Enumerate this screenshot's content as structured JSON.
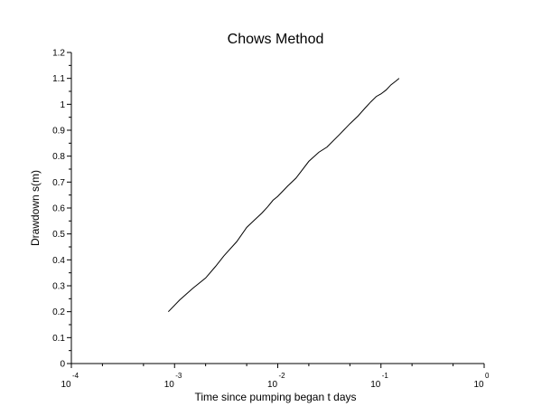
{
  "chart_data": {
    "type": "line",
    "title": "Chows Method",
    "xlabel": "Time since pumping began t days",
    "ylabel": "Drawdown s(m)",
    "xscale": "log",
    "xlim": [
      0.0001,
      1
    ],
    "ylim": [
      0,
      1.2
    ],
    "grid": false,
    "x_ticks": [
      {
        "base": "10",
        "exp": "-4"
      },
      {
        "base": "10",
        "exp": "-3"
      },
      {
        "base": "10",
        "exp": "-2"
      },
      {
        "base": "10",
        "exp": "-1"
      },
      {
        "base": "10",
        "exp": "0"
      }
    ],
    "y_ticks": [
      "0",
      "0.1",
      "0.2",
      "0.3",
      "0.4",
      "0.5",
      "0.6",
      "0.7",
      "0.8",
      "0.9",
      "1",
      "1.1",
      "1.2"
    ],
    "series": [
      {
        "color": "#000000",
        "x": [
          0.00087,
          0.00112,
          0.0015,
          0.002,
          0.0025,
          0.003,
          0.004,
          0.005,
          0.006,
          0.007,
          0.008,
          0.009,
          0.01,
          0.0125,
          0.015,
          0.02,
          0.025,
          0.03,
          0.04,
          0.05,
          0.06,
          0.07,
          0.08,
          0.09,
          0.1,
          0.112,
          0.125,
          0.14,
          0.15
        ],
        "y": [
          0.2,
          0.245,
          0.29,
          0.33,
          0.375,
          0.415,
          0.47,
          0.525,
          0.555,
          0.58,
          0.605,
          0.63,
          0.645,
          0.685,
          0.715,
          0.78,
          0.815,
          0.835,
          0.885,
          0.925,
          0.955,
          0.985,
          1.01,
          1.03,
          1.04,
          1.055,
          1.075,
          1.09,
          1.1
        ]
      }
    ]
  }
}
